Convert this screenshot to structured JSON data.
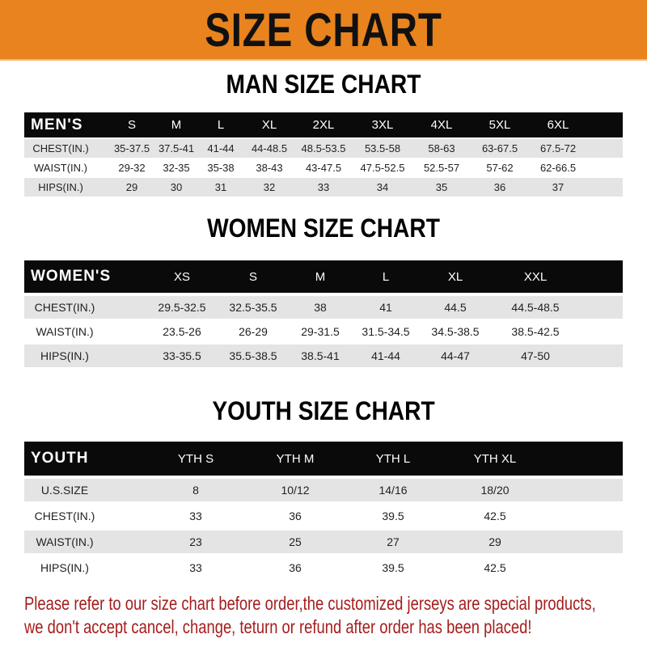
{
  "banner_title": "SIZE CHART",
  "colors": {
    "banner": "#e8831e",
    "header_row": "#0a0a0a",
    "notice": "#a51d1d"
  },
  "men": {
    "title": "MAN SIZE CHART",
    "header": [
      "MEN'S",
      "S",
      "M",
      "L",
      "XL",
      "2XL",
      "3XL",
      "4XL",
      "5XL",
      "6XL"
    ],
    "rows": [
      [
        "CHEST(IN.)",
        "35-37.5",
        "37.5-41",
        "41-44",
        "44-48.5",
        "48.5-53.5",
        "53.5-58",
        "58-63",
        "63-67.5",
        "67.5-72"
      ],
      [
        "WAIST(IN.)",
        "29-32",
        "32-35",
        "35-38",
        "38-43",
        "43-47.5",
        "47.5-52.5",
        "52.5-57",
        "57-62",
        "62-66.5"
      ],
      [
        "HIPS(IN.)",
        "29",
        "30",
        "31",
        "32",
        "33",
        "34",
        "35",
        "36",
        "37"
      ]
    ]
  },
  "women": {
    "title": "WOMEN SIZE CHART",
    "header": [
      "WOMEN'S",
      "XS",
      "S",
      "M",
      "L",
      "XL",
      "XXL"
    ],
    "rows": [
      [
        "CHEST(IN.)",
        "29.5-32.5",
        "32.5-35.5",
        "38",
        "41",
        "44.5",
        "44.5-48.5"
      ],
      [
        "WAIST(IN.)",
        "23.5-26",
        "26-29",
        "29-31.5",
        "31.5-34.5",
        "34.5-38.5",
        "38.5-42.5"
      ],
      [
        "HIPS(IN.)",
        "33-35.5",
        "35.5-38.5",
        "38.5-41",
        "41-44",
        "44-47",
        "47-50"
      ]
    ]
  },
  "youth": {
    "title": "YOUTH SIZE CHART",
    "header": [
      "YOUTH",
      "YTH S",
      "YTH M",
      "YTH L",
      "YTH XL"
    ],
    "rows": [
      [
        "U.S.SIZE",
        "8",
        "10/12",
        "14/16",
        "18/20"
      ],
      [
        "CHEST(IN.)",
        "33",
        "36",
        "39.5",
        "42.5"
      ],
      [
        "WAIST(IN.)",
        "23",
        "25",
        "27",
        "29"
      ],
      [
        "HIPS(IN.)",
        "33",
        "36",
        "39.5",
        "42.5"
      ]
    ]
  },
  "notice": [
    "Please refer to our size chart before order,the customized jerseys are special products,",
    "we don't accept cancel, change, teturn or refund after order has been placed!"
  ]
}
